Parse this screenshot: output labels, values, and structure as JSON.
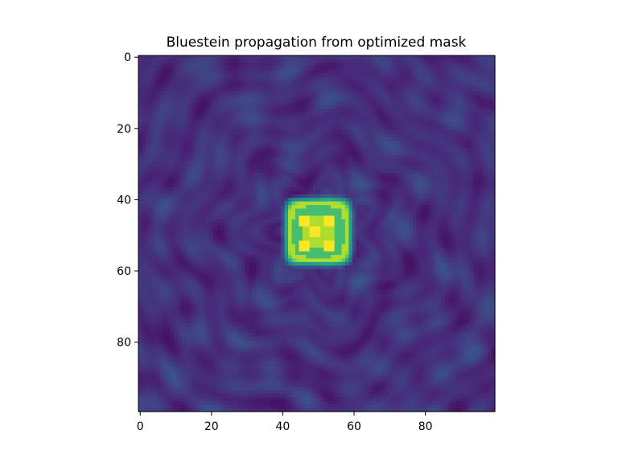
{
  "chart_data": {
    "type": "heatmap",
    "title": "Bluestein propagation from optimized mask",
    "xlabel": "",
    "ylabel": "",
    "grid_size": [
      100,
      100
    ],
    "xlim": [
      -0.5,
      99.5
    ],
    "ylim": [
      99.5,
      -0.5
    ],
    "x_ticks": [
      0,
      20,
      40,
      60,
      80
    ],
    "y_ticks": [
      0,
      20,
      40,
      60,
      80
    ],
    "colormap": "viridis",
    "colormap_stops": [
      "#440154",
      "#482878",
      "#3e4a89",
      "#31688e",
      "#26828e",
      "#1f9e89",
      "#35b779",
      "#6ece58",
      "#b5de2b",
      "#fde725"
    ],
    "background_level": 0.14,
    "speckle_level_range": [
      0.05,
      0.38
    ],
    "bright_square": {
      "center": [
        50,
        49
      ],
      "half_width": 9,
      "level": 0.88
    },
    "inner_dots": [
      {
        "x": 46,
        "y": 46
      },
      {
        "x": 53,
        "y": 46
      },
      {
        "x": 46,
        "y": 53
      },
      {
        "x": 53,
        "y": 53
      },
      {
        "x": 49,
        "y": 49
      }
    ],
    "grid": false
  }
}
